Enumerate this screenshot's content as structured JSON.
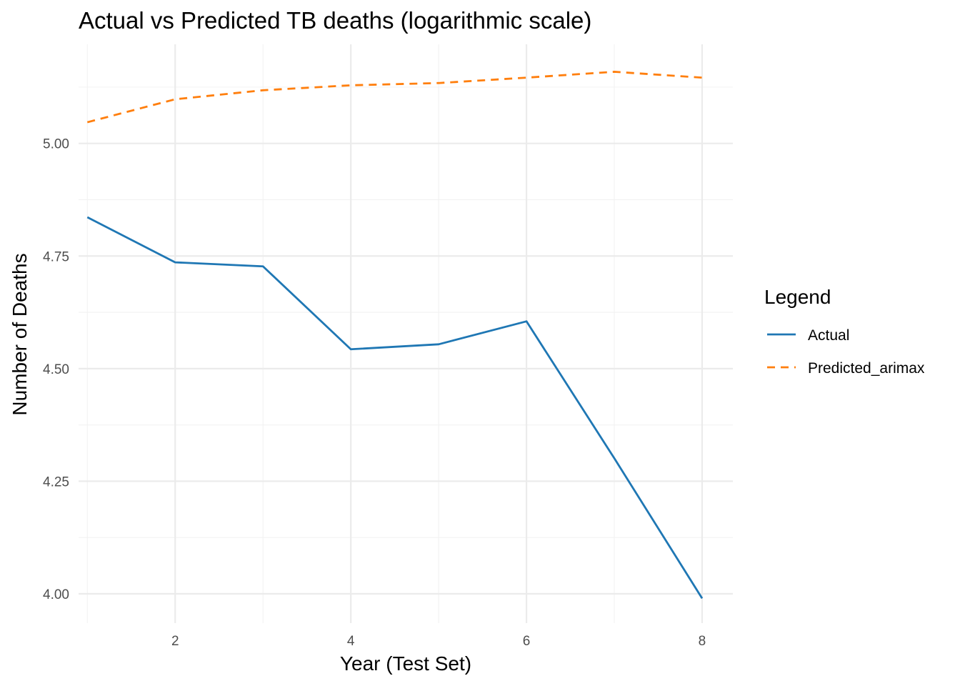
{
  "chart_data": {
    "type": "line",
    "title": "Actual vs Predicted TB deaths (logarithmic scale)",
    "xlabel": "Year (Test Set)",
    "ylabel": "Number of Deaths",
    "x": [
      1,
      2,
      3,
      4,
      5,
      6,
      7,
      8
    ],
    "xlim": [
      0.9,
      8.35
    ],
    "ylim": [
      3.935,
      5.22
    ],
    "x_ticks": [
      2,
      4,
      6,
      8
    ],
    "x_tick_labels": [
      "2",
      "4",
      "6",
      "8"
    ],
    "y_ticks": [
      4.0,
      4.25,
      4.5,
      4.75,
      5.0
    ],
    "y_tick_labels": [
      "4.00",
      "4.25",
      "4.50",
      "4.75",
      "5.00"
    ],
    "grid": true,
    "legend": {
      "title": "Legend",
      "placement": "right"
    },
    "series": [
      {
        "name": "Actual",
        "values": [
          4.836,
          4.736,
          4.727,
          4.543,
          4.554,
          4.605,
          4.301,
          3.99
        ],
        "color": "#1f77b4",
        "dash": "solid"
      },
      {
        "name": "Predicted_arimax",
        "values": [
          5.047,
          5.098,
          5.118,
          5.129,
          5.134,
          5.146,
          5.159,
          5.146
        ],
        "color": "#ff7f0e",
        "dash": "dashed"
      }
    ]
  }
}
